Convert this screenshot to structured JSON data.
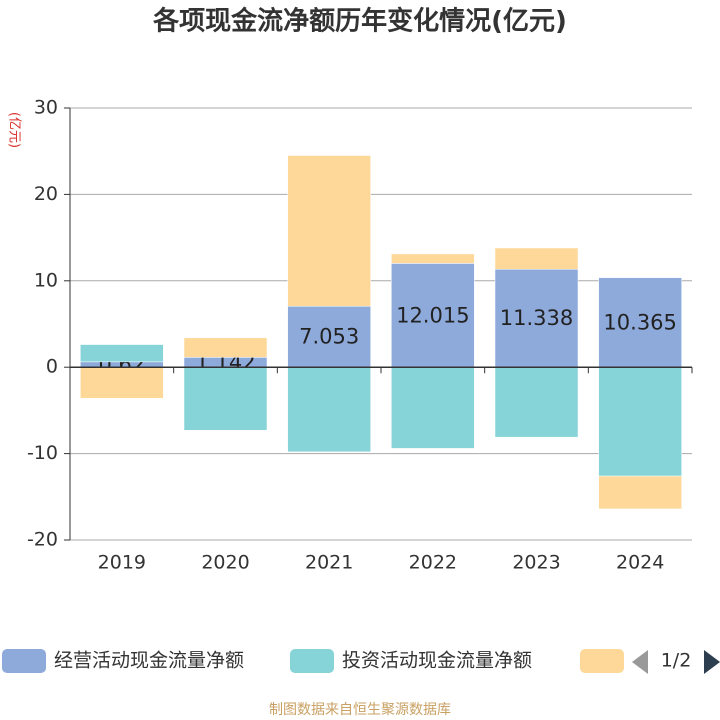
{
  "chart_data": {
    "type": "bar",
    "stacked": true,
    "title": "各项现金流净额历年变化情况(亿元)",
    "y_label": "(亿元)",
    "categories": [
      "2019",
      "2020",
      "2021",
      "2022",
      "2023",
      "2024"
    ],
    "series": [
      {
        "name": "经营活动现金流量净额",
        "color": "#8eaadb",
        "values": [
          0.62,
          1.142,
          7.053,
          12.015,
          11.338,
          10.365
        ],
        "show_labels": true
      },
      {
        "name": "投资活动现金流量净额",
        "color": "#86d4d8",
        "values": [
          2.0,
          -7.3,
          -9.8,
          -9.4,
          -8.1,
          -12.6
        ]
      },
      {
        "color": "#fdd898",
        "values": [
          -3.6,
          2.26,
          17.45,
          1.1,
          2.46,
          -3.8
        ]
      }
    ],
    "ylim": [
      -20,
      30
    ],
    "yticks": [
      -20,
      -10,
      0,
      10,
      20,
      30
    ],
    "grid": true,
    "legend_page": "1/2",
    "source": "制图数据来自恒生聚源数据库"
  }
}
